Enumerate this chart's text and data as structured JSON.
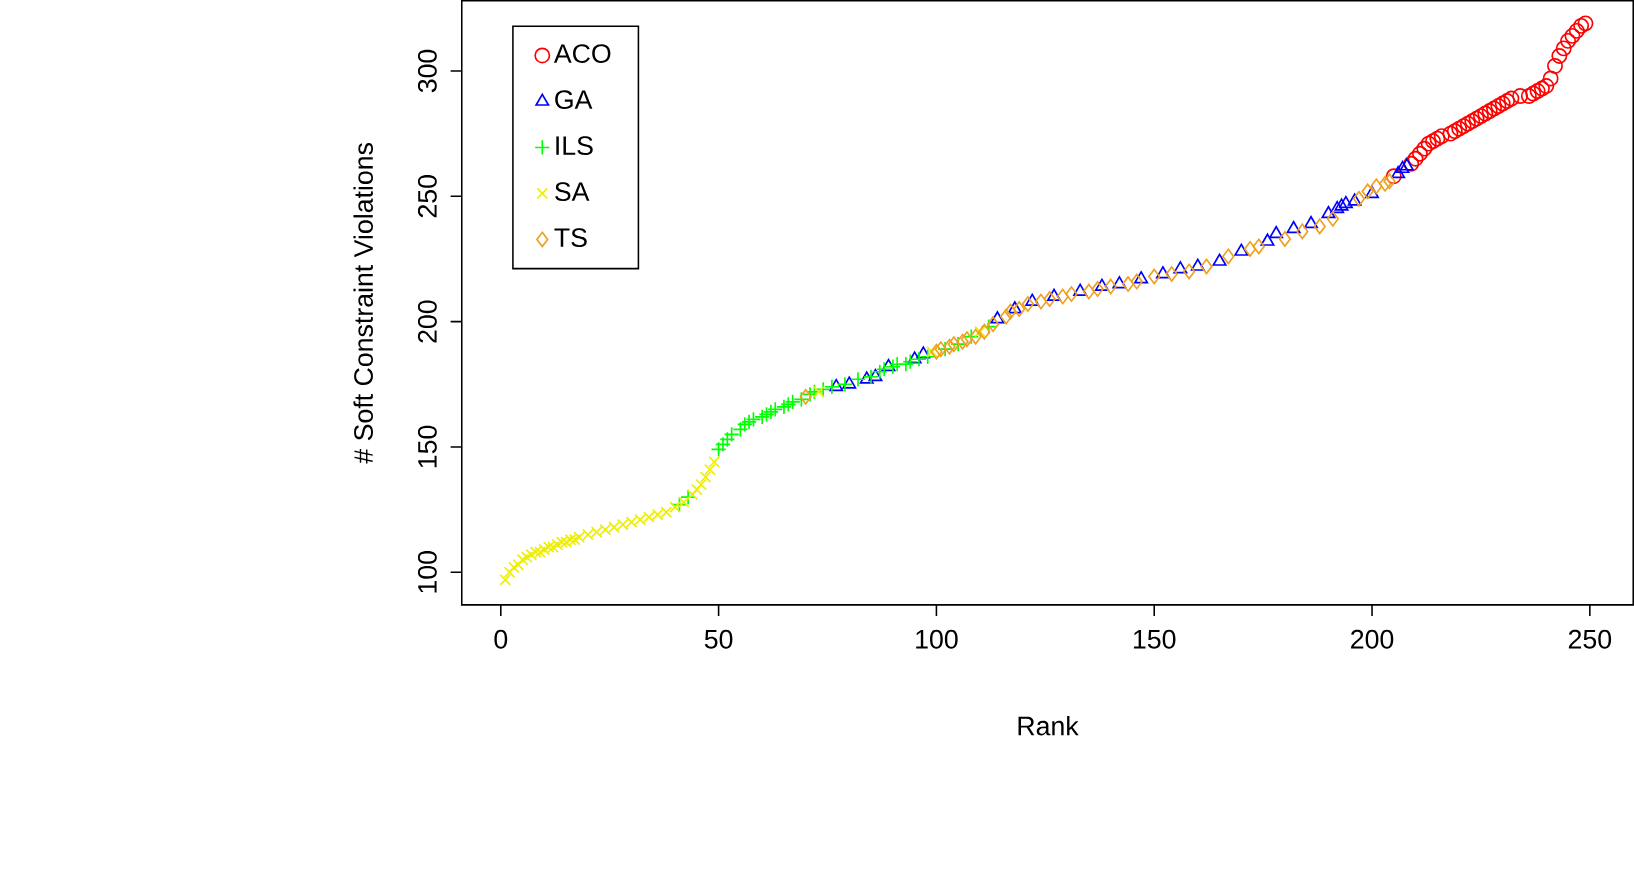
{
  "chart_data": {
    "type": "scatter",
    "xlabel": "Rank",
    "ylabel": "# Soft Constraint Violations",
    "xlim": [
      -8.96,
      259.96
    ],
    "ylim": [
      87,
      328
    ],
    "xticks": [
      0,
      50,
      100,
      150,
      200,
      250
    ],
    "yticks": [
      100,
      150,
      200,
      250,
      300
    ],
    "grid": false,
    "legend": "top left",
    "series": [
      {
        "name": "ACO",
        "color": "#ff0000",
        "marker": "circle",
        "x": [
          205,
          209,
          210,
          211,
          212,
          213,
          214,
          215,
          216,
          218,
          219,
          220,
          221,
          222,
          223,
          224,
          225,
          226,
          227,
          228,
          229,
          230,
          231,
          232,
          234,
          236,
          237,
          238,
          239,
          240,
          241,
          242,
          243,
          244,
          245,
          246,
          247,
          248,
          249
        ],
        "values": [
          258,
          263,
          265,
          267,
          269,
          271,
          272,
          273,
          274,
          275,
          276,
          277,
          278,
          279,
          280,
          281,
          282,
          283,
          284,
          285,
          286,
          287,
          288,
          289,
          290,
          290,
          291,
          292,
          293,
          294,
          297,
          302,
          306,
          309,
          312,
          314,
          316,
          318,
          319
        ]
      },
      {
        "name": "GA",
        "color": "#0000ff",
        "marker": "triangle",
        "x": [
          77,
          80,
          84,
          86,
          89,
          95,
          97,
          114,
          118,
          122,
          127,
          133,
          138,
          142,
          147,
          152,
          156,
          160,
          165,
          170,
          176,
          178,
          182,
          186,
          190,
          192,
          193,
          194,
          196,
          200,
          206,
          207,
          208
        ],
        "values": [
          174,
          175,
          177,
          178,
          182,
          185,
          187,
          201,
          205,
          208,
          210,
          212,
          214,
          215,
          217,
          219,
          221,
          222,
          224,
          228,
          232,
          235,
          237,
          239,
          243,
          245,
          246,
          247,
          248,
          251,
          259,
          261,
          262
        ]
      },
      {
        "name": "ILS",
        "color": "#00ff00",
        "marker": "plus",
        "x": [
          41,
          43,
          50,
          51,
          52,
          53,
          55,
          56,
          57,
          58,
          60,
          61,
          62,
          63,
          65,
          66,
          67,
          69,
          71,
          72,
          74,
          76,
          79,
          82,
          85,
          87,
          88,
          90,
          91,
          93,
          94,
          96,
          98,
          102,
          105,
          108,
          112
        ],
        "values": [
          127,
          130,
          149,
          151,
          153,
          155,
          157,
          159,
          160,
          161,
          162,
          163,
          164,
          165,
          166,
          167,
          168,
          169,
          171,
          172,
          173,
          174,
          175,
          177,
          178,
          180,
          181,
          182,
          183,
          183,
          184,
          185,
          186,
          189,
          191,
          194,
          198
        ]
      },
      {
        "name": "SA",
        "color": "#eeee00",
        "marker": "cross",
        "x": [
          1,
          2,
          3,
          4,
          5,
          6,
          7,
          8,
          9,
          10,
          11,
          12,
          13,
          14,
          15,
          16,
          17,
          18,
          20,
          22,
          24,
          26,
          28,
          30,
          32,
          34,
          36,
          38,
          40,
          42,
          44,
          45,
          46,
          47,
          48,
          49,
          73,
          99,
          110
        ],
        "values": [
          97,
          100,
          102,
          103,
          105,
          106,
          107,
          108,
          108,
          109,
          110,
          110,
          111,
          112,
          112,
          113,
          113,
          114,
          115,
          116,
          117,
          118,
          119,
          120,
          121,
          122,
          123,
          124,
          126,
          128,
          131,
          133,
          135,
          138,
          141,
          144,
          172,
          188,
          196
        ]
      },
      {
        "name": "TS",
        "color": "#f0a020",
        "marker": "diamond",
        "x": [
          70,
          100,
          101,
          103,
          104,
          106,
          107,
          109,
          111,
          113,
          116,
          117,
          119,
          121,
          124,
          126,
          129,
          131,
          135,
          137,
          140,
          144,
          146,
          150,
          154,
          158,
          162,
          167,
          172,
          174,
          180,
          184,
          188,
          191,
          197,
          199,
          201,
          203,
          204
        ],
        "values": [
          170,
          188,
          189,
          190,
          191,
          192,
          193,
          194,
          196,
          199,
          202,
          204,
          205,
          207,
          208,
          209,
          210,
          211,
          212,
          213,
          214,
          215,
          216,
          218,
          219,
          220,
          222,
          226,
          229,
          230,
          233,
          236,
          238,
          241,
          249,
          252,
          254,
          255,
          256
        ]
      }
    ]
  }
}
